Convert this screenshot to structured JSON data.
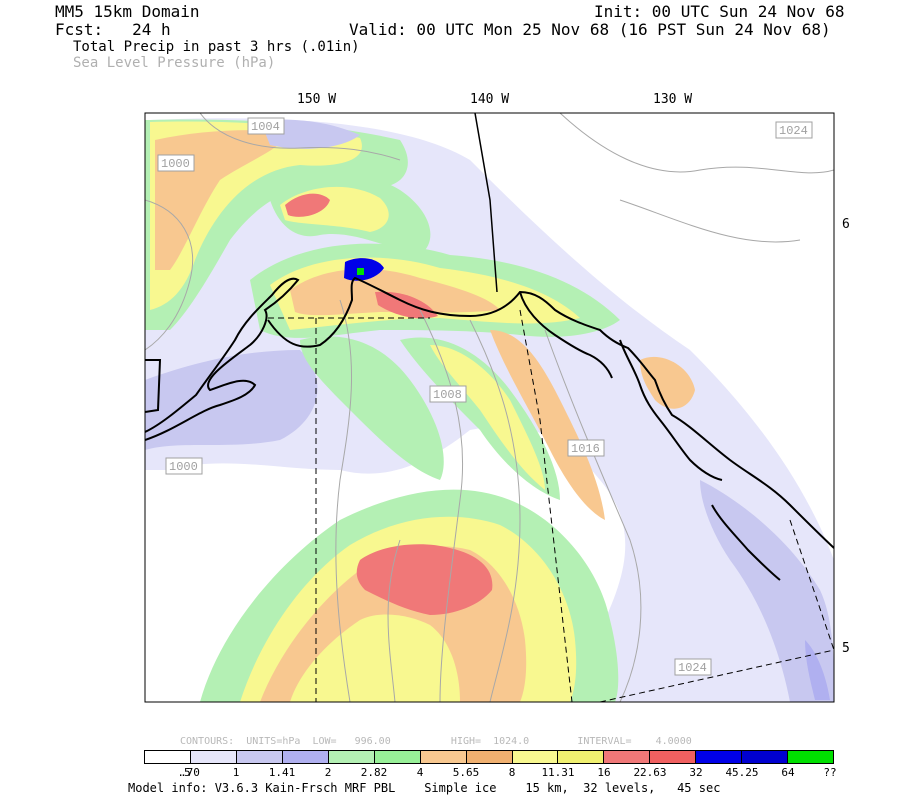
{
  "header": {
    "domain": "MM5 15km Domain",
    "init": "Init: 00 UTC Sun 24 Nov 68",
    "fcst": "Fcst:   24 h",
    "valid": "Valid: 00 UTC Mon 25 Nov 68 (16 PST Sun 24 Nov 68)",
    "field1": "Total Precip in past 3 hrs (.01in)",
    "field2": "Sea Level Pressure (hPa)"
  },
  "map": {
    "lon_labels": [
      "150 W",
      "140 W",
      "130 W"
    ],
    "lat_labels": [
      "6",
      "5"
    ],
    "isobar_labels": [
      "1004",
      "1000",
      "1024",
      "1008",
      "1016",
      "1000",
      "1024"
    ]
  },
  "contours_info": "CONTOURS:  UNITS=hPa  LOW=   996.00          HIGH=  1024.0        INTERVAL=    4.0000",
  "colorbar": {
    "colors": [
      "#ffffff",
      "#e6e6fa",
      "#c8c8f0",
      "#b0b0f0",
      "#b4f0b4",
      "#98f098",
      "#f8c890",
      "#f0b070",
      "#f8f890",
      "#f0f070",
      "#f07878",
      "#f06060",
      "#0000e8",
      "#0000d0",
      "#00e000"
    ],
    "tick_labels": [
      ".5",
      ".70",
      "1",
      "1.41",
      "2",
      "2.82",
      "4",
      "5.65",
      "8",
      "11.31",
      "16",
      "22.63",
      "32",
      "45.25",
      "64",
      "??"
    ]
  },
  "footer": "Model info: V3.6.3 Kain-Frsch MRF PBL    Simple ice    15 km,  32 levels,   45 sec"
}
